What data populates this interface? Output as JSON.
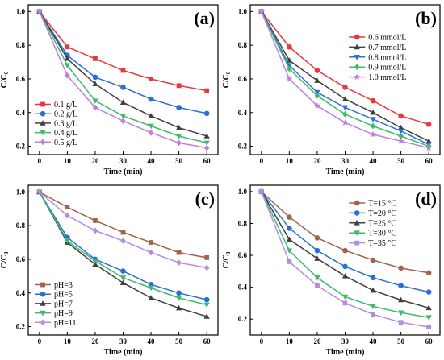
{
  "chart_data": [
    {
      "type": "line",
      "panel_label": "(a)",
      "xlabel": "Time (min)",
      "ylabel": "C/C",
      "ylabel_sub": "0",
      "x": [
        0,
        10,
        20,
        30,
        40,
        50,
        60
      ],
      "xticks": [
        "0",
        "10",
        "20",
        "30",
        "40",
        "50",
        "60"
      ],
      "yticks": [
        "0.2",
        "0.4",
        "0.6",
        "0.8",
        "1.0"
      ],
      "xlim": [
        -4,
        64
      ],
      "ylim": [
        0.15,
        1.04
      ],
      "legend": "bottom-left",
      "series": [
        {
          "name": "0.1 g/L",
          "color": "#e8383d",
          "marker": "square",
          "values": [
            1.0,
            0.79,
            0.72,
            0.65,
            0.6,
            0.56,
            0.53
          ]
        },
        {
          "name": "0.2 g/L",
          "color": "#2a6fd6",
          "marker": "circle",
          "values": [
            1.0,
            0.74,
            0.61,
            0.55,
            0.48,
            0.43,
            0.395
          ]
        },
        {
          "name": "0.3 g/L",
          "color": "#404040",
          "marker": "triangle-up",
          "values": [
            1.0,
            0.72,
            0.57,
            0.46,
            0.38,
            0.31,
            0.26
          ]
        },
        {
          "name": "0.4 g/L",
          "color": "#3dbb6a",
          "marker": "triangle-down",
          "values": [
            1.0,
            0.68,
            0.47,
            0.38,
            0.32,
            0.26,
            0.22
          ]
        },
        {
          "name": "0.5 g/L",
          "color": "#c07fe0",
          "marker": "diamond",
          "values": [
            1.0,
            0.62,
            0.43,
            0.35,
            0.28,
            0.22,
            0.19
          ]
        }
      ]
    },
    {
      "type": "line",
      "panel_label": "(b)",
      "xlabel": "Time (min)",
      "ylabel": "C/C",
      "ylabel_sub": "0",
      "x": [
        0,
        10,
        20,
        30,
        40,
        50,
        60
      ],
      "xticks": [
        "0",
        "10",
        "20",
        "30",
        "40",
        "50",
        "60"
      ],
      "yticks": [
        "0.2",
        "0.4",
        "0.6",
        "0.8",
        "1.0"
      ],
      "xlim": [
        -4,
        64
      ],
      "ylim": [
        0.15,
        1.04
      ],
      "legend": "top-right",
      "series": [
        {
          "name": "0.6 mmol/L",
          "color": "#e8383d",
          "marker": "circle",
          "values": [
            1.0,
            0.79,
            0.65,
            0.55,
            0.47,
            0.38,
            0.33
          ]
        },
        {
          "name": "0.7 mmol/L",
          "color": "#404040",
          "marker": "triangle-up",
          "values": [
            1.0,
            0.71,
            0.59,
            0.48,
            0.4,
            0.31,
            0.23
          ]
        },
        {
          "name": "0.8 mmol/L",
          "color": "#2a6fd6",
          "marker": "triangle-down",
          "values": [
            1.0,
            0.68,
            0.52,
            0.43,
            0.36,
            0.29,
            0.21
          ]
        },
        {
          "name": "0.9 mmol/L",
          "color": "#3dbb6a",
          "marker": "diamond",
          "values": [
            1.0,
            0.66,
            0.5,
            0.39,
            0.32,
            0.26,
            0.2
          ]
        },
        {
          "name": "1.0 mmol/L",
          "color": "#c07fe0",
          "marker": "star",
          "values": [
            1.0,
            0.6,
            0.44,
            0.34,
            0.27,
            0.23,
            0.19
          ]
        }
      ]
    },
    {
      "type": "line",
      "panel_label": "(c)",
      "xlabel": "Time (min)",
      "ylabel": "C/C",
      "ylabel_sub": "0",
      "x": [
        0,
        10,
        20,
        30,
        40,
        50,
        60
      ],
      "xticks": [
        "0",
        "10",
        "20",
        "30",
        "40",
        "50",
        "60"
      ],
      "yticks": [
        "0.2",
        "0.4",
        "0.6",
        "0.8",
        "1.0"
      ],
      "xlim": [
        -4,
        64
      ],
      "ylim": [
        0.15,
        1.04
      ],
      "legend": "bottom-left",
      "series": [
        {
          "name": "pH=3",
          "color": "#a0644a",
          "marker": "square",
          "values": [
            1.0,
            0.91,
            0.83,
            0.76,
            0.7,
            0.64,
            0.61
          ]
        },
        {
          "name": "pH=5",
          "color": "#2a6fd6",
          "marker": "circle",
          "values": [
            1.0,
            0.73,
            0.6,
            0.53,
            0.45,
            0.4,
            0.36
          ]
        },
        {
          "name": "pH=7",
          "color": "#404040",
          "marker": "triangle-up",
          "values": [
            1.0,
            0.7,
            0.57,
            0.46,
            0.37,
            0.31,
            0.26
          ]
        },
        {
          "name": "pH=9",
          "color": "#3dbb6a",
          "marker": "triangle-down",
          "values": [
            1.0,
            0.71,
            0.59,
            0.49,
            0.43,
            0.37,
            0.33
          ]
        },
        {
          "name": "pH=11",
          "color": "#b58de0",
          "marker": "diamond",
          "values": [
            1.0,
            0.86,
            0.77,
            0.71,
            0.64,
            0.58,
            0.55
          ]
        }
      ]
    },
    {
      "type": "line",
      "panel_label": "(d)",
      "xlabel": "Time (min)",
      "ylabel": "C/C",
      "ylabel_sub": "0",
      "x": [
        0,
        10,
        20,
        30,
        40,
        50,
        60
      ],
      "xticks": [
        "0",
        "10",
        "20",
        "30",
        "40",
        "50",
        "60"
      ],
      "yticks": [
        "0.2",
        "0.4",
        "0.6",
        "0.8",
        "1.0"
      ],
      "xlim": [
        -4,
        64
      ],
      "ylim": [
        0.1,
        1.04
      ],
      "legend": "top-right",
      "series": [
        {
          "name": "T=15 °C",
          "color": "#a0644a",
          "marker": "circle",
          "values": [
            1.0,
            0.84,
            0.71,
            0.63,
            0.57,
            0.52,
            0.49
          ]
        },
        {
          "name": "T=20 °C",
          "color": "#2a6fd6",
          "marker": "circle",
          "values": [
            1.0,
            0.77,
            0.63,
            0.53,
            0.46,
            0.41,
            0.37
          ]
        },
        {
          "name": "T=25 °C",
          "color": "#404040",
          "marker": "triangle-up",
          "values": [
            1.0,
            0.7,
            0.58,
            0.47,
            0.38,
            0.32,
            0.27
          ]
        },
        {
          "name": "T=30 °C",
          "color": "#3dbb6a",
          "marker": "triangle-down",
          "values": [
            1.0,
            0.63,
            0.46,
            0.34,
            0.28,
            0.24,
            0.21
          ]
        },
        {
          "name": "T=35 °C",
          "color": "#b58de0",
          "marker": "square",
          "values": [
            1.0,
            0.56,
            0.41,
            0.3,
            0.23,
            0.18,
            0.15
          ]
        }
      ]
    }
  ]
}
